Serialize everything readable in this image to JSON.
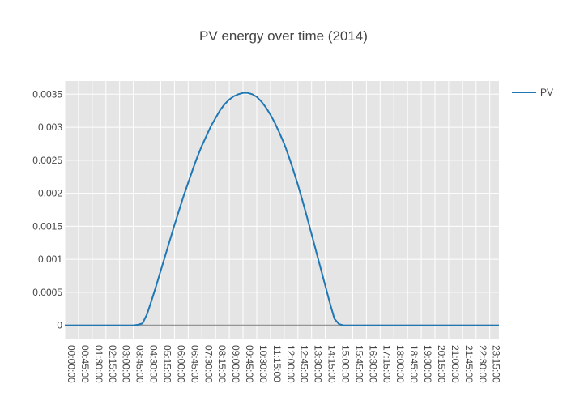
{
  "chart_data": {
    "type": "line",
    "title": "PV energy over time (2014)",
    "xlabel": "",
    "ylabel": "",
    "grid": true,
    "legend_position": "top-right",
    "x_tick_labels": [
      "00:00:00",
      "00:45:00",
      "01:30:00",
      "02:15:00",
      "03:00:00",
      "03:45:00",
      "04:30:00",
      "05:15:00",
      "06:00:00",
      "06:45:00",
      "07:30:00",
      "08:15:00",
      "09:00:00",
      "09:45:00",
      "10:30:00",
      "11:15:00",
      "12:00:00",
      "12:45:00",
      "13:30:00",
      "14:15:00",
      "15:00:00",
      "15:45:00",
      "16:30:00",
      "17:15:00",
      "18:00:00",
      "18:45:00",
      "19:30:00",
      "20:15:00",
      "21:00:00",
      "21:45:00",
      "22:30:00",
      "23:15:00"
    ],
    "y_ticks": [
      "0",
      "0.0005",
      "0.001",
      "0.0015",
      "0.002",
      "0.0025",
      "0.003",
      "0.0035"
    ],
    "ylim": [
      -0.0002,
      0.0037
    ],
    "x_range_hours": [
      0,
      23.75
    ],
    "series": [
      {
        "name": "PV",
        "color": "#1f77b4",
        "x": [
          "00:00:00",
          "03:45:00",
          "04:00:00",
          "04:15:00",
          "04:30:00",
          "04:45:00",
          "05:00:00",
          "05:15:00",
          "05:30:00",
          "05:45:00",
          "06:00:00",
          "06:15:00",
          "06:30:00",
          "06:45:00",
          "07:00:00",
          "07:15:00",
          "07:30:00",
          "07:45:00",
          "08:00:00",
          "08:15:00",
          "08:30:00",
          "08:45:00",
          "09:00:00",
          "09:15:00",
          "09:30:00",
          "09:45:00",
          "10:00:00",
          "10:15:00",
          "10:30:00",
          "10:45:00",
          "11:00:00",
          "11:15:00",
          "11:30:00",
          "11:45:00",
          "12:00:00",
          "12:15:00",
          "12:30:00",
          "12:45:00",
          "13:00:00",
          "13:15:00",
          "13:30:00",
          "13:45:00",
          "14:00:00",
          "14:15:00",
          "14:30:00",
          "14:45:00",
          "15:00:00",
          "15:15:00",
          "15:30:00",
          "15:45:00",
          "16:00:00",
          "16:15:00",
          "16:30:00",
          "23:45:00"
        ],
        "values": [
          0,
          0,
          1e-05,
          3e-05,
          0.00017,
          0.00038,
          0.0006,
          0.00083,
          0.00106,
          0.00129,
          0.00152,
          0.00174,
          0.00196,
          0.00216,
          0.00236,
          0.00255,
          0.00272,
          0.00287,
          0.00302,
          0.00314,
          0.00326,
          0.00335,
          0.00342,
          0.00347,
          0.0035,
          0.00352,
          0.00352,
          0.0035,
          0.00346,
          0.00339,
          0.0033,
          0.00319,
          0.00306,
          0.00291,
          0.00275,
          0.00256,
          0.00235,
          0.00213,
          0.00189,
          0.00164,
          0.00138,
          0.00112,
          0.00086,
          0.0006,
          0.00034,
          0.0001,
          2e-05,
          0,
          0,
          0,
          0,
          0,
          0,
          0
        ]
      }
    ]
  }
}
